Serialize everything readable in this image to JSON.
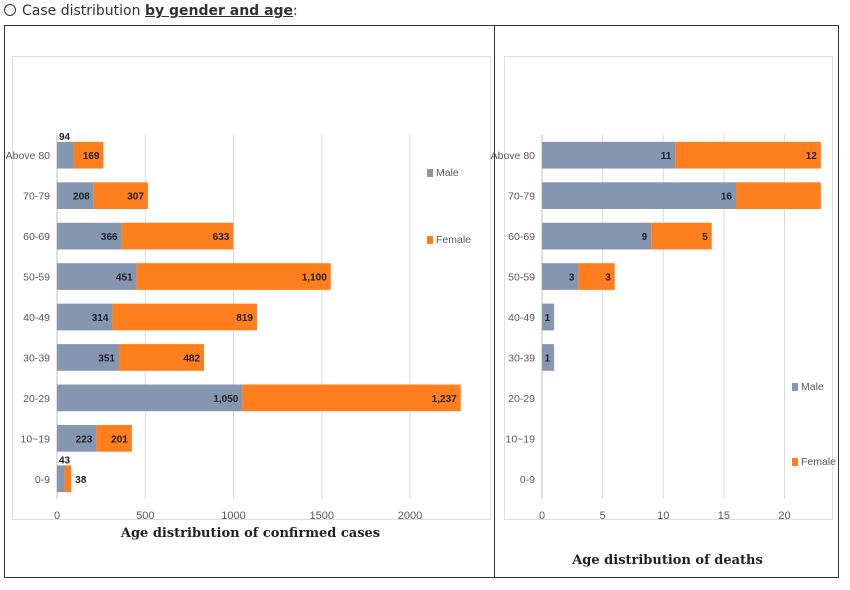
{
  "header": {
    "prefix": "Case distribution ",
    "emphasis": "by gender and age",
    "suffix": ":"
  },
  "colors": {
    "male": "#8496b0",
    "female": "#ff7f1e"
  },
  "chart_data": [
    {
      "type": "bar",
      "orientation": "horizontal",
      "stacked": true,
      "caption": "Age distribution of confirmed cases",
      "categories": [
        "Above 80",
        "70-79",
        "60-69",
        "50-59",
        "40-49",
        "30-39",
        "20-29",
        "10~19",
        "0-9"
      ],
      "series": [
        {
          "name": "Male",
          "values": [
            94,
            208,
            366,
            451,
            314,
            351,
            1050,
            223,
            43
          ],
          "labels": [
            "94",
            "208",
            "366",
            "451",
            "314",
            "351",
            "1,050",
            "223",
            "43"
          ]
        },
        {
          "name": "Female",
          "values": [
            169,
            307,
            633,
            1100,
            819,
            482,
            1237,
            201,
            38
          ],
          "labels": [
            "169",
            "307",
            "633",
            "1,100",
            "819",
            "482",
            "1,237",
            "201",
            "38"
          ]
        }
      ],
      "xlim": [
        0,
        2300
      ],
      "xticks": [
        0,
        500,
        1000,
        1500,
        2000
      ],
      "grid": true,
      "legend": "right"
    },
    {
      "type": "bar",
      "orientation": "horizontal",
      "stacked": true,
      "caption": "Age distribution of deaths",
      "categories": [
        "Above 80",
        "70-79",
        "60-69",
        "50-59",
        "40-49",
        "30-39",
        "20-29",
        "10~19",
        "0-9"
      ],
      "series": [
        {
          "name": "Male",
          "values": [
            11,
            16,
            9,
            3,
            1,
            1,
            0,
            0,
            0
          ],
          "labels": [
            "11",
            "16",
            "9",
            "3",
            "1",
            "1",
            "",
            "",
            ""
          ]
        },
        {
          "name": "Female",
          "values": [
            12,
            7,
            5,
            3,
            0,
            0,
            0,
            0,
            0
          ],
          "labels": [
            "12",
            "",
            "5",
            "3",
            "",
            "",
            "",
            "",
            ""
          ]
        }
      ],
      "xlim": [
        0,
        24
      ],
      "xticks": [
        0,
        5,
        10,
        15,
        20
      ],
      "grid": true,
      "legend": "right"
    }
  ]
}
